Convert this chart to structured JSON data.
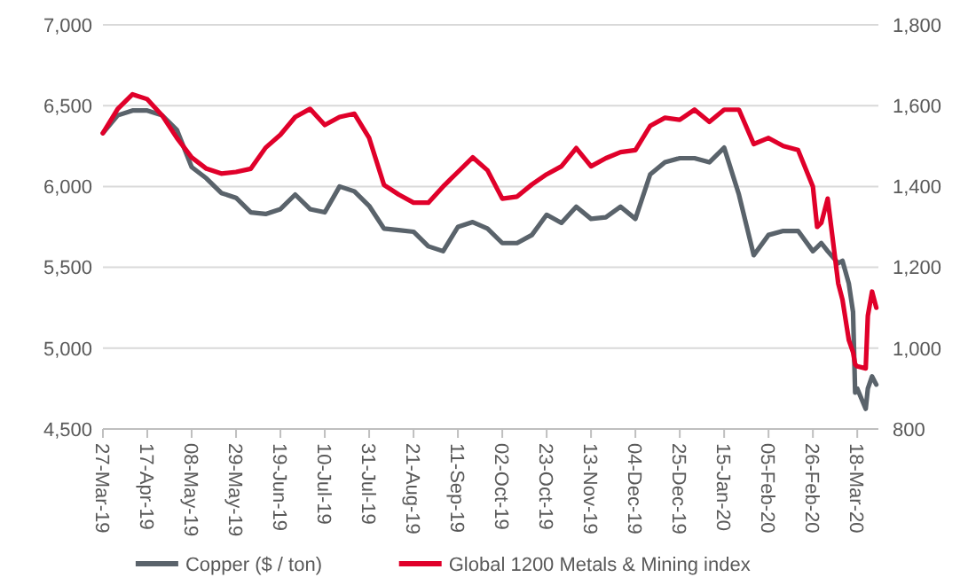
{
  "chart_data": {
    "type": "line",
    "x": [
      "2019-03-27",
      "2019-04-03",
      "2019-04-10",
      "2019-04-17",
      "2019-04-24",
      "2019-05-01",
      "2019-05-08",
      "2019-05-15",
      "2019-05-22",
      "2019-05-29",
      "2019-06-05",
      "2019-06-12",
      "2019-06-19",
      "2019-06-26",
      "2019-07-03",
      "2019-07-10",
      "2019-07-17",
      "2019-07-24",
      "2019-07-31",
      "2019-08-07",
      "2019-08-14",
      "2019-08-21",
      "2019-08-28",
      "2019-09-04",
      "2019-09-11",
      "2019-09-18",
      "2019-09-25",
      "2019-10-02",
      "2019-10-09",
      "2019-10-16",
      "2019-10-23",
      "2019-10-30",
      "2019-11-06",
      "2019-11-13",
      "2019-11-20",
      "2019-11-27",
      "2019-12-04",
      "2019-12-11",
      "2019-12-18",
      "2019-12-25",
      "2020-01-01",
      "2020-01-08",
      "2020-01-15",
      "2020-01-22",
      "2020-01-29",
      "2020-02-05",
      "2020-02-12",
      "2020-02-19",
      "2020-02-26",
      "2020-02-28",
      "2020-03-01",
      "2020-03-04",
      "2020-03-09",
      "2020-03-11",
      "2020-03-14",
      "2020-03-16",
      "2020-03-17",
      "2020-03-18",
      "2020-03-22",
      "2020-03-23",
      "2020-03-25",
      "2020-03-27"
    ],
    "series": [
      {
        "name": "Copper ($ / ton)",
        "color": "#5a636b",
        "values": [
          6330,
          6440,
          6470,
          6470,
          6440,
          6350,
          6120,
          6050,
          5960,
          5930,
          5840,
          5830,
          5860,
          5950,
          5860,
          5840,
          6000,
          5970,
          5880,
          5740,
          5730,
          5720,
          5630,
          5600,
          5750,
          5780,
          5740,
          5650,
          5650,
          5700,
          5825,
          5775,
          5875,
          5800,
          5810,
          5875,
          5800,
          6075,
          6150,
          6175,
          6175,
          6150,
          6240,
          5950,
          5575,
          5700,
          5725,
          5725,
          5600,
          5625,
          5650,
          5600,
          5525,
          5540,
          5400,
          5225,
          4725,
          4750,
          4625,
          4750,
          4825,
          4775
        ]
      },
      {
        "name": "Global 1200 Metals & Mining index",
        "color": "#e0002a",
        "axis": "y2",
        "values": [
          1532,
          1592,
          1628,
          1616,
          1576,
          1520,
          1472,
          1444,
          1432,
          1436,
          1444,
          1496,
          1528,
          1572,
          1592,
          1552,
          1572,
          1580,
          1520,
          1404,
          1380,
          1360,
          1360,
          1400,
          1436,
          1472,
          1440,
          1370,
          1375,
          1405,
          1430,
          1450,
          1495,
          1450,
          1470,
          1485,
          1490,
          1550,
          1570,
          1565,
          1590,
          1560,
          1590,
          1590,
          1505,
          1520,
          1500,
          1490,
          1400,
          1300,
          1310,
          1370,
          1160,
          1120,
          1020,
          990,
          960,
          955,
          950,
          1080,
          1140,
          1100
        ]
      }
    ],
    "xlim": [
      "2019-03-27",
      "2020-03-28"
    ],
    "xticks": [
      {
        "value": "2019-03-27",
        "label": "27-Mar-19"
      },
      {
        "value": "2019-04-17",
        "label": "17-Apr-19"
      },
      {
        "value": "2019-05-08",
        "label": "08-May-19"
      },
      {
        "value": "2019-05-29",
        "label": "29-May-19"
      },
      {
        "value": "2019-06-19",
        "label": "19-Jun-19"
      },
      {
        "value": "2019-07-10",
        "label": "10-Jul-19"
      },
      {
        "value": "2019-07-31",
        "label": "31-Jul-19"
      },
      {
        "value": "2019-08-21",
        "label": "21-Aug-19"
      },
      {
        "value": "2019-09-11",
        "label": "11-Sep-19"
      },
      {
        "value": "2019-10-02",
        "label": "02-Oct-19"
      },
      {
        "value": "2019-10-23",
        "label": "23-Oct-19"
      },
      {
        "value": "2019-11-13",
        "label": "13-Nov-19"
      },
      {
        "value": "2019-12-04",
        "label": "04-Dec-19"
      },
      {
        "value": "2019-12-25",
        "label": "25-Dec-19"
      },
      {
        "value": "2020-01-15",
        "label": "15-Jan-20"
      },
      {
        "value": "2020-02-05",
        "label": "05-Feb-20"
      },
      {
        "value": "2020-02-26",
        "label": "26-Feb-20"
      },
      {
        "value": "2020-03-18",
        "label": "18-Mar-20"
      }
    ],
    "ylim": [
      4500,
      7000
    ],
    "yticks": [
      {
        "value": 4500,
        "label": "4,500"
      },
      {
        "value": 5000,
        "label": "5,000"
      },
      {
        "value": 5500,
        "label": "5,500"
      },
      {
        "value": 6000,
        "label": "6,000"
      },
      {
        "value": 6500,
        "label": "6,500"
      },
      {
        "value": 7000,
        "label": "7,000"
      }
    ],
    "y2lim": [
      800,
      1800
    ],
    "y2ticks": [
      {
        "value": 800,
        "label": "800"
      },
      {
        "value": 1000,
        "label": "1,000"
      },
      {
        "value": 1200,
        "label": "1,200"
      },
      {
        "value": 1400,
        "label": "1,400"
      },
      {
        "value": 1600,
        "label": "1,600"
      },
      {
        "value": 1800,
        "label": "1,800"
      }
    ],
    "grid": "y",
    "legend": "bottom",
    "marker": "none",
    "line_style": "solid"
  }
}
